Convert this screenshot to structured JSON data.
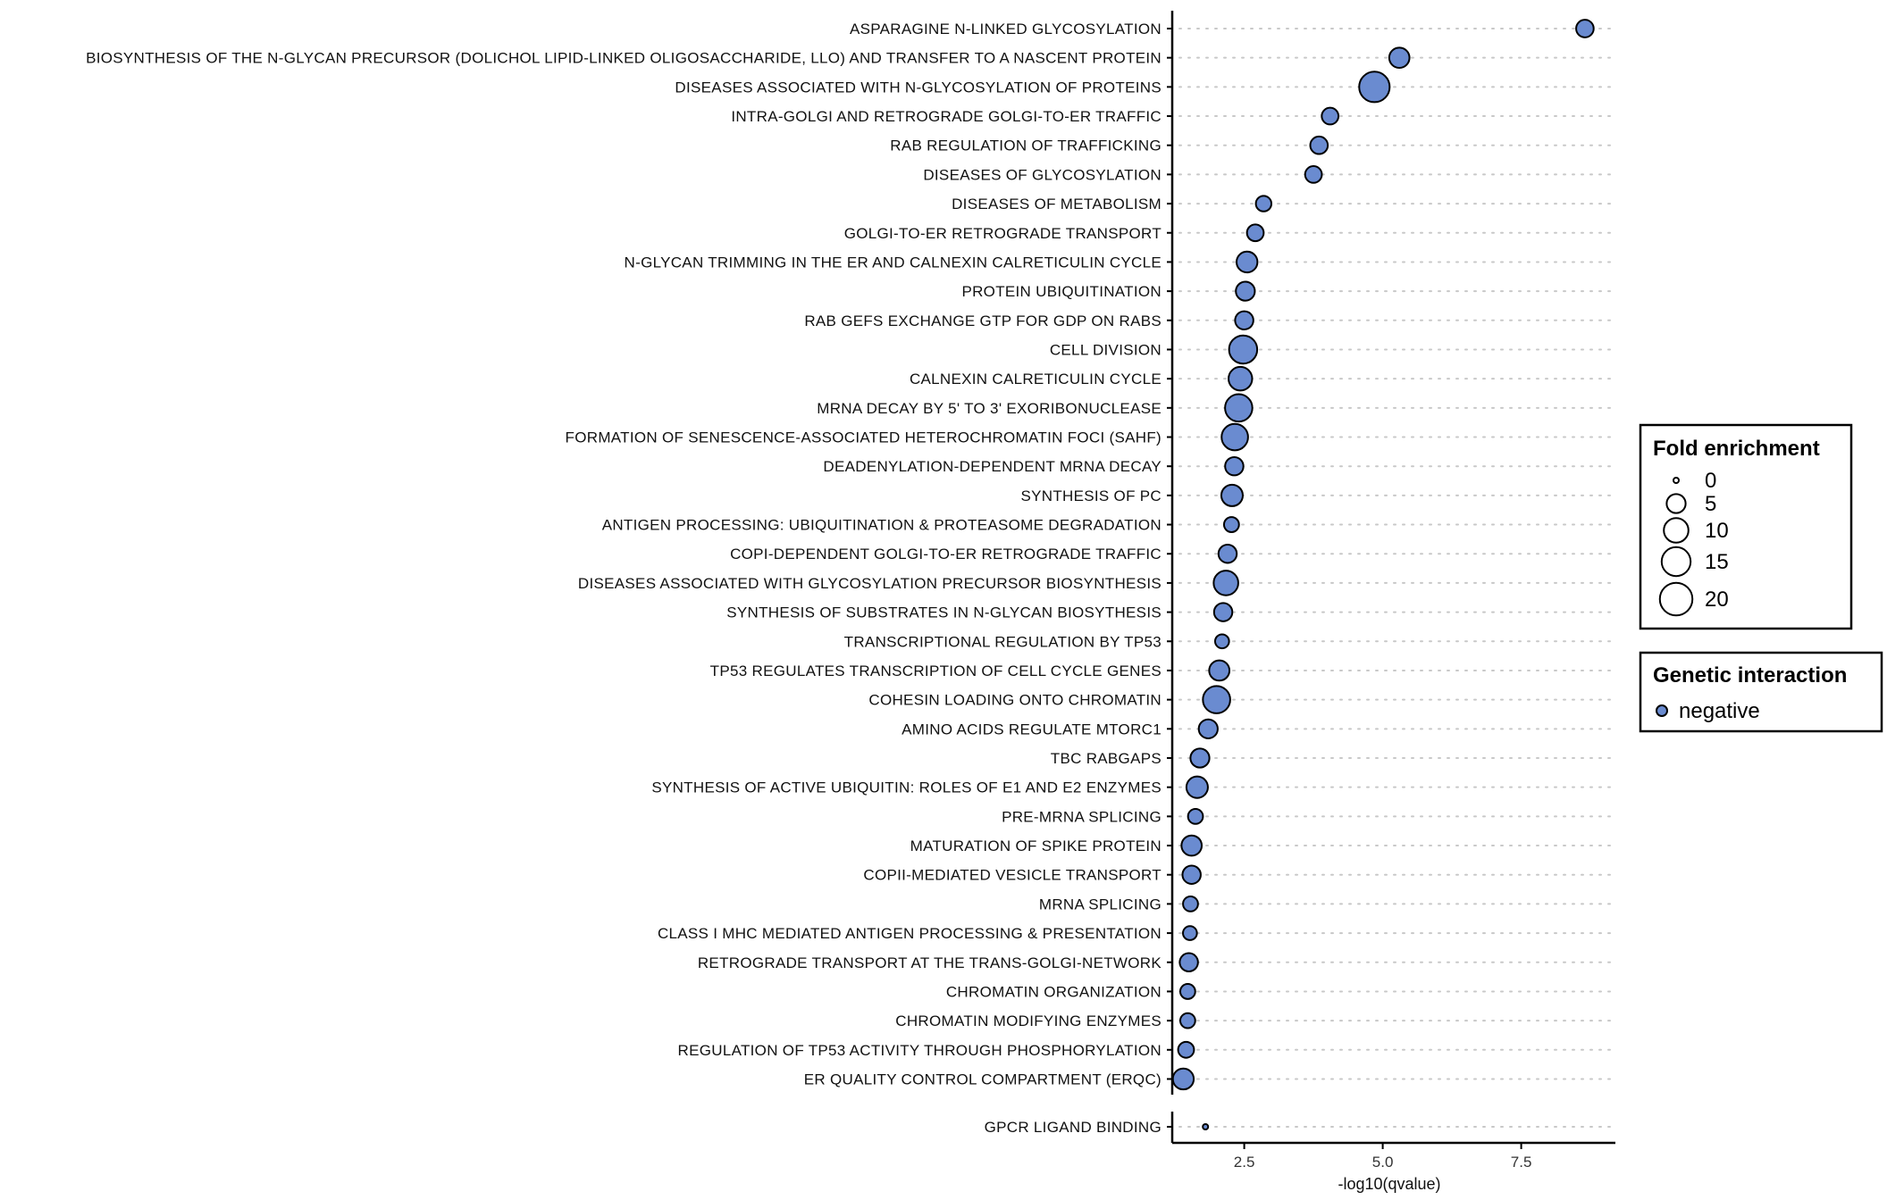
{
  "chart_data": {
    "type": "scatter",
    "title": "",
    "xlabel": "-log10(qvalue)",
    "ylabel": "",
    "xlim": [
      1.2,
      9.2
    ],
    "x_ticks": [
      2.5,
      5.0,
      7.5
    ],
    "x_tick_labels": [
      "2.5",
      "5.0",
      "7.5"
    ],
    "grid": "dotted horizontal guide lines",
    "point_color": "#6a8bd0",
    "panels": [
      {
        "points": [
          {
            "label": "ASPARAGINE N-LINKED GLYCOSYLATION",
            "x": 8.65,
            "fold_enrichment": 4
          },
          {
            "label": "BIOSYNTHESIS OF THE N-GLYCAN PRECURSOR (DOLICHOL LIPID-LINKED OLIGOSACCHARIDE, LLO) AND TRANSFER TO A NASCENT PROTEIN",
            "x": 5.3,
            "fold_enrichment": 6
          },
          {
            "label": "DISEASES ASSOCIATED WITH N-GLYCOSYLATION OF PROTEINS",
            "x": 4.85,
            "fold_enrichment": 17
          },
          {
            "label": "INTRA-GOLGI AND RETROGRADE GOLGI-TO-ER TRAFFIC",
            "x": 4.05,
            "fold_enrichment": 3.5
          },
          {
            "label": "RAB REGULATION OF TRAFFICKING",
            "x": 3.85,
            "fold_enrichment": 4
          },
          {
            "label": "DISEASES OF GLYCOSYLATION",
            "x": 3.75,
            "fold_enrichment": 3.5
          },
          {
            "label": "DISEASES OF METABOLISM",
            "x": 2.85,
            "fold_enrichment": 2.8
          },
          {
            "label": "GOLGI-TO-ER RETROGRADE TRANSPORT",
            "x": 2.7,
            "fold_enrichment": 3.5
          },
          {
            "label": "N-GLYCAN TRIMMING IN THE ER AND CALNEXIN CALRETICULIN CYCLE",
            "x": 2.55,
            "fold_enrichment": 6.5
          },
          {
            "label": "PROTEIN UBIQUITINATION",
            "x": 2.52,
            "fold_enrichment": 5
          },
          {
            "label": "RAB GEFS EXCHANGE GTP FOR GDP ON RABS",
            "x": 2.5,
            "fold_enrichment": 4.5
          },
          {
            "label": "CELL DIVISION",
            "x": 2.48,
            "fold_enrichment": 14
          },
          {
            "label": "CALNEXIN CALRETICULIN CYCLE",
            "x": 2.43,
            "fold_enrichment": 9
          },
          {
            "label": "MRNA DECAY BY 5' TO 3' EXORIBONUCLEASE",
            "x": 2.4,
            "fold_enrichment": 13
          },
          {
            "label": "FORMATION OF SENESCENCE-ASSOCIATED HETEROCHROMATIN FOCI (SAHF)",
            "x": 2.33,
            "fold_enrichment": 12
          },
          {
            "label": "DEADENYLATION-DEPENDENT MRNA DECAY",
            "x": 2.32,
            "fold_enrichment": 4.5
          },
          {
            "label": "SYNTHESIS OF PC",
            "x": 2.28,
            "fold_enrichment": 7
          },
          {
            "label": "ANTIGEN PROCESSING: UBIQUITINATION & PROTEASOME DEGRADATION",
            "x": 2.27,
            "fold_enrichment": 2.5
          },
          {
            "label": "COPI-DEPENDENT GOLGI-TO-ER RETROGRADE TRAFFIC",
            "x": 2.2,
            "fold_enrichment": 4.5
          },
          {
            "label": "DISEASES ASSOCIATED WITH GLYCOSYLATION PRECURSOR BIOSYNTHESIS",
            "x": 2.17,
            "fold_enrichment": 10
          },
          {
            "label": "SYNTHESIS OF SUBSTRATES IN N-GLYCAN BIOSYTHESIS",
            "x": 2.12,
            "fold_enrichment": 4.5
          },
          {
            "label": "TRANSCRIPTIONAL REGULATION BY TP53",
            "x": 2.1,
            "fold_enrichment": 2
          },
          {
            "label": "TP53 REGULATES TRANSCRIPTION OF CELL CYCLE GENES",
            "x": 2.05,
            "fold_enrichment": 6
          },
          {
            "label": "COHESIN LOADING ONTO CHROMATIN",
            "x": 2.0,
            "fold_enrichment": 13
          },
          {
            "label": "AMINO ACIDS REGULATE MTORC1",
            "x": 1.85,
            "fold_enrichment": 5
          },
          {
            "label": "TBC RABGAPS",
            "x": 1.7,
            "fold_enrichment": 5
          },
          {
            "label": "SYNTHESIS OF ACTIVE UBIQUITIN: ROLES OF E1 AND E2 ENZYMES",
            "x": 1.65,
            "fold_enrichment": 7
          },
          {
            "label": "PRE-MRNA SPLICING",
            "x": 1.62,
            "fold_enrichment": 2.5
          },
          {
            "label": "MATURATION OF SPIKE PROTEIN",
            "x": 1.55,
            "fold_enrichment": 6
          },
          {
            "label": "COPII-MEDIATED VESICLE TRANSPORT",
            "x": 1.55,
            "fold_enrichment": 4.5
          },
          {
            "label": "MRNA SPLICING",
            "x": 1.53,
            "fold_enrichment": 2.5
          },
          {
            "label": "CLASS I MHC MEDIATED ANTIGEN PROCESSING & PRESENTATION",
            "x": 1.52,
            "fold_enrichment": 2
          },
          {
            "label": "RETROGRADE TRANSPORT AT THE TRANS-GOLGI-NETWORK",
            "x": 1.5,
            "fold_enrichment": 4.5
          },
          {
            "label": "CHROMATIN ORGANIZATION",
            "x": 1.48,
            "fold_enrichment": 2.5
          },
          {
            "label": "CHROMATIN MODIFYING ENZYMES",
            "x": 1.48,
            "fold_enrichment": 2.5
          },
          {
            "label": "REGULATION OF TP53 ACTIVITY THROUGH PHOSPHORYLATION",
            "x": 1.45,
            "fold_enrichment": 3
          },
          {
            "label": "ER QUALITY CONTROL COMPARTMENT (ERQC)",
            "x": 1.4,
            "fold_enrichment": 6.5
          }
        ]
      },
      {
        "points": [
          {
            "label": "GPCR LIGAND BINDING",
            "x": 1.8,
            "fold_enrichment": 0
          }
        ]
      }
    ],
    "legend": {
      "placement": "right",
      "size_title": "Fold enrichment",
      "size_breaks": [
        0,
        5,
        10,
        15,
        20
      ],
      "size_labels": [
        "0",
        "5",
        "10",
        "15",
        "20"
      ],
      "color_title": "Genetic interaction",
      "color_entries": [
        {
          "label": "negative",
          "color": "#6a8bd0"
        }
      ]
    }
  }
}
